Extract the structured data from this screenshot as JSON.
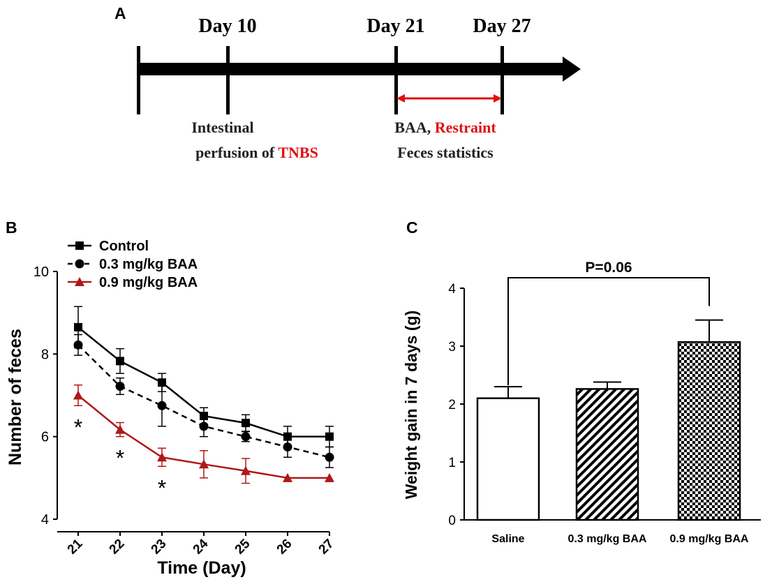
{
  "colors": {
    "black": "#000000",
    "red": "#e01010",
    "darkred": "#b01818"
  },
  "panel_a": {
    "label": "A",
    "milestones": [
      {
        "day": "Day 10"
      },
      {
        "day": "Day 21"
      },
      {
        "day": "Day 27"
      }
    ],
    "desc_tnbs_line1": "Intestinal",
    "desc_tnbs_line2_prefix": "perfusion  of ",
    "desc_tnbs_highlight": "TNBS",
    "desc_baa_prefix": "BAA, ",
    "desc_baa_highlight": "Restraint",
    "desc_baa_line2": "Feces statistics"
  },
  "chart_data": [
    {
      "panel": "B",
      "type": "line",
      "xlabel": "Time (Day)",
      "ylabel": "Number of feces",
      "ylim": [
        4,
        10
      ],
      "yticks": [
        4,
        6,
        8,
        10
      ],
      "categories": [
        "21",
        "22",
        "23",
        "24",
        "25",
        "26",
        "27"
      ],
      "legend_position": "top-left",
      "series": [
        {
          "name": "Control",
          "marker": "square",
          "line": "solid",
          "color": "#000000",
          "values": [
            8.65,
            7.83,
            7.31,
            6.5,
            6.33,
            6.0,
            6.0
          ],
          "errors": [
            0.5,
            0.3,
            0.22,
            0.2,
            0.2,
            0.25,
            0.25
          ]
        },
        {
          "name": "0.3 mg/kg BAA",
          "marker": "circle",
          "line": "dashed",
          "color": "#000000",
          "values": [
            8.22,
            7.22,
            6.75,
            6.25,
            6.0,
            5.75,
            5.5
          ],
          "errors": [
            0.25,
            0.2,
            0.5,
            0.25,
            0.12,
            0.25,
            0.25
          ]
        },
        {
          "name": "0.9 mg/kg BAA",
          "marker": "triangle",
          "line": "solid",
          "color": "#b01818",
          "values": [
            7.0,
            6.17,
            5.5,
            5.33,
            5.17,
            5.0,
            5.0
          ],
          "errors": [
            0.25,
            0.17,
            0.22,
            0.33,
            0.3,
            0.0,
            0.0
          ]
        }
      ],
      "annotations": [
        {
          "category": "21",
          "text": "*"
        },
        {
          "category": "22",
          "text": "*"
        },
        {
          "category": "23",
          "text": "*"
        }
      ]
    },
    {
      "panel": "C",
      "type": "bar",
      "xlabel": "",
      "ylabel": "Weight gain in 7 days (g)",
      "ylim": [
        0,
        4
      ],
      "yticks": [
        0,
        1,
        2,
        3,
        4
      ],
      "categories": [
        "Saline",
        "0.3 mg/kg BAA",
        "0.9 mg/kg BAA"
      ],
      "values": [
        2.1,
        2.26,
        3.07
      ],
      "errors": [
        0.2,
        0.12,
        0.38
      ],
      "patterns": [
        "none",
        "diagonal-stripes",
        "checkerboard"
      ],
      "annotation": {
        "text": "P=0.06",
        "from": "Saline",
        "to": "0.9 mg/kg BAA"
      }
    }
  ]
}
